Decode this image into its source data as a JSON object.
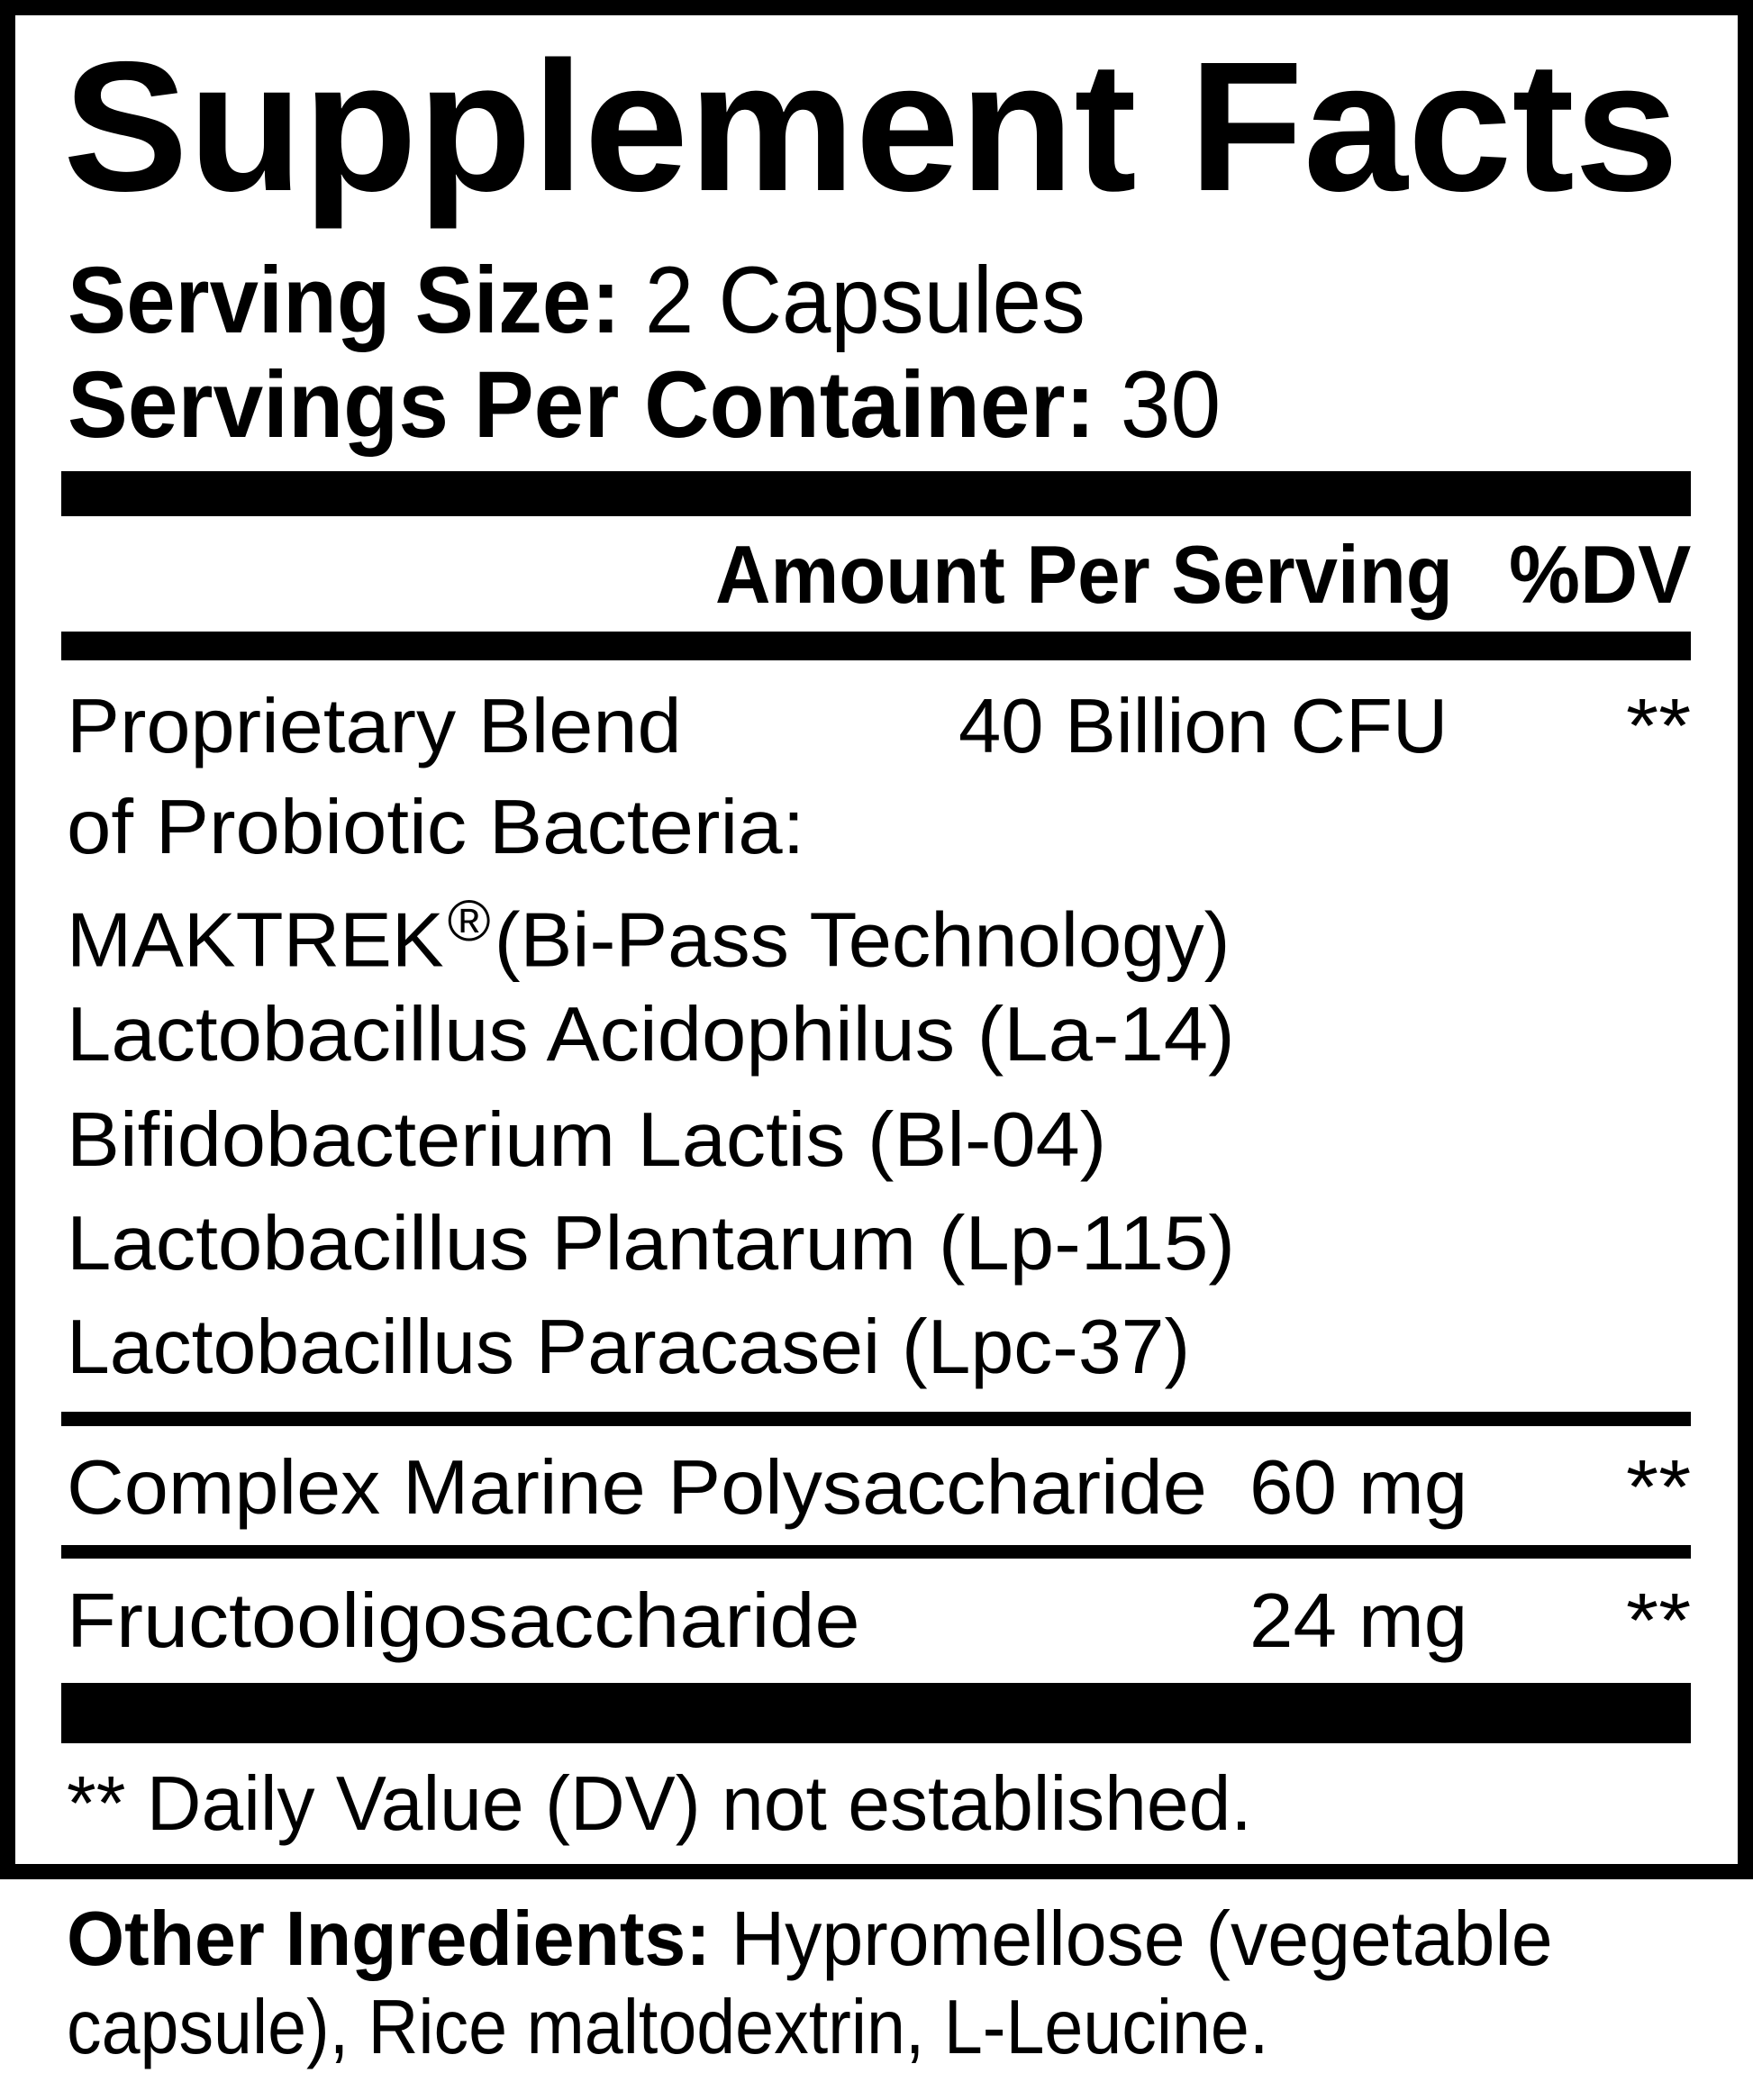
{
  "title": "Supplement Facts",
  "serving_size": {
    "label": "Serving Size:",
    "value": "2 Capsules"
  },
  "servings_per_container": {
    "label": "Servings Per Container:",
    "value": "30"
  },
  "header": {
    "amount": "Amount Per Serving",
    "dv": "%DV"
  },
  "blend": {
    "name_line1": "Proprietary Blend",
    "name_line2": "of Probiotic Bacteria:",
    "amount": "40 Billion CFU",
    "dv": "**",
    "brand": "MAKTREK",
    "brand_mark": "®",
    "brand_desc": "(Bi-Pass Technology)",
    "strains": [
      "Lactobacillus Acidophilus (La-14)",
      "Bifidobacterium Lactis (Bl-04)",
      "Lactobacillus Plantarum (Lp-115)",
      "Lactobacillus Paracasei (Lpc-37)"
    ]
  },
  "ingredients": [
    {
      "name": "Complex Marine Polysaccharide",
      "amount": "60 mg",
      "dv": "**"
    },
    {
      "name": "Fructooligosaccharide",
      "amount": "24 mg",
      "dv": "**"
    }
  ],
  "footnote": "** Daily Value (DV) not established.",
  "other_ingredients": {
    "label": "Other Ingredients:",
    "text_line1": "Hypromellose (vegetable",
    "text_line2": "capsule), Rice maltodextrin, L-Leucine."
  }
}
